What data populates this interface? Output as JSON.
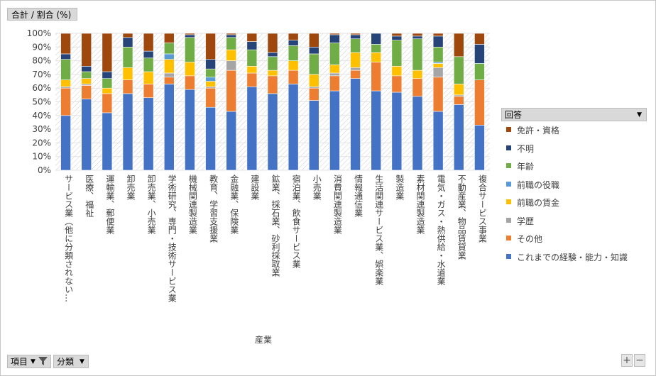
{
  "value_field": "合計 / 割合 (%)",
  "legend": {
    "title": "回答",
    "items": [
      {
        "label": "免許・資格",
        "color": "#9E480E"
      },
      {
        "label": "不明",
        "color": "#264478"
      },
      {
        "label": "年齢",
        "color": "#70AD47"
      },
      {
        "label": "前職の役職",
        "color": "#5B9BD5"
      },
      {
        "label": "前職の賃金",
        "color": "#FFC000"
      },
      {
        "label": "学歴",
        "color": "#A5A5A5"
      },
      {
        "label": "その他",
        "color": "#ED7D31"
      },
      {
        "label": "これまでの経験・能力・知識",
        "color": "#4472C4"
      }
    ]
  },
  "bottom": {
    "item_label": "項目",
    "category_label": "分類"
  },
  "zoom": {
    "plus": "+",
    "minus": "−"
  },
  "chart_data": {
    "type": "bar",
    "stacked": true,
    "percent": true,
    "xlabel": "産業",
    "ylabel": "",
    "ylim": [
      0,
      100
    ],
    "yticks": [
      "0%",
      "10%",
      "20%",
      "30%",
      "40%",
      "50%",
      "60%",
      "70%",
      "80%",
      "90%",
      "100%"
    ],
    "categories": [
      "サービス業（他に分類されない…",
      "医療、福祉",
      "運輸業、郵便業",
      "卸売業",
      "卸売業、小売業",
      "学術研究、専門・技術サービス業",
      "機械関連製造業",
      "教育、学習支援業",
      "金融業、保険業",
      "建設業",
      "鉱業、採石業、砂利採取業",
      "宿泊業、飲食サービス業",
      "小売業",
      "消費関連製造業",
      "情報通信業",
      "生活関連サービス業、娯楽業",
      "製造業",
      "素材関連製造業",
      "電気・ガス・熱供給・水道業",
      "不動産業、物品賃貸業",
      "複合サービス事業"
    ],
    "series": [
      {
        "name": "これまでの経験・能力・知識",
        "color": "#4472C4",
        "values": [
          40,
          52,
          42,
          56,
          53,
          63,
          59,
          46,
          43,
          61,
          56,
          63,
          51,
          58,
          67,
          58,
          57,
          54,
          43,
          48,
          33
        ]
      },
      {
        "name": "その他",
        "color": "#ED7D31",
        "values": [
          20,
          10,
          14,
          10,
          10,
          5,
          10,
          14,
          30,
          10,
          13,
          10,
          9,
          11,
          6,
          21,
          12,
          13,
          25,
          6,
          33
        ]
      },
      {
        "name": "学歴",
        "color": "#A5A5A5",
        "values": [
          1,
          1,
          0,
          0,
          0,
          3,
          0,
          1,
          7,
          0,
          0,
          0,
          1,
          2,
          2,
          0,
          0,
          0,
          7,
          1,
          0
        ]
      },
      {
        "name": "前職の賃金",
        "color": "#FFC000",
        "values": [
          5,
          4,
          4,
          9,
          9,
          10,
          10,
          4,
          8,
          5,
          4,
          7,
          9,
          6,
          11,
          7,
          7,
          6,
          3,
          8,
          0
        ]
      },
      {
        "name": "前職の役職",
        "color": "#5B9BD5",
        "values": [
          0,
          0,
          0,
          0,
          0,
          4,
          0,
          3,
          0,
          0,
          0,
          0,
          0,
          0,
          0,
          0,
          0,
          0,
          1,
          0,
          0
        ]
      },
      {
        "name": "年齢",
        "color": "#70AD47",
        "values": [
          15,
          5,
          7,
          15,
          10,
          8,
          18,
          6,
          9,
          12,
          10,
          11,
          15,
          16,
          10,
          6,
          19,
          23,
          11,
          20,
          12
        ]
      },
      {
        "name": "不明",
        "color": "#264478",
        "values": [
          4,
          4,
          5,
          7,
          5,
          0,
          2,
          7,
          2,
          6,
          3,
          4,
          5,
          6,
          3,
          8,
          3,
          2,
          8,
          0,
          14
        ]
      },
      {
        "name": "免許・資格",
        "color": "#9E480E",
        "values": [
          15,
          24,
          28,
          3,
          13,
          7,
          1,
          19,
          1,
          6,
          14,
          5,
          10,
          1,
          1,
          0,
          2,
          2,
          2,
          17,
          8
        ]
      }
    ]
  }
}
